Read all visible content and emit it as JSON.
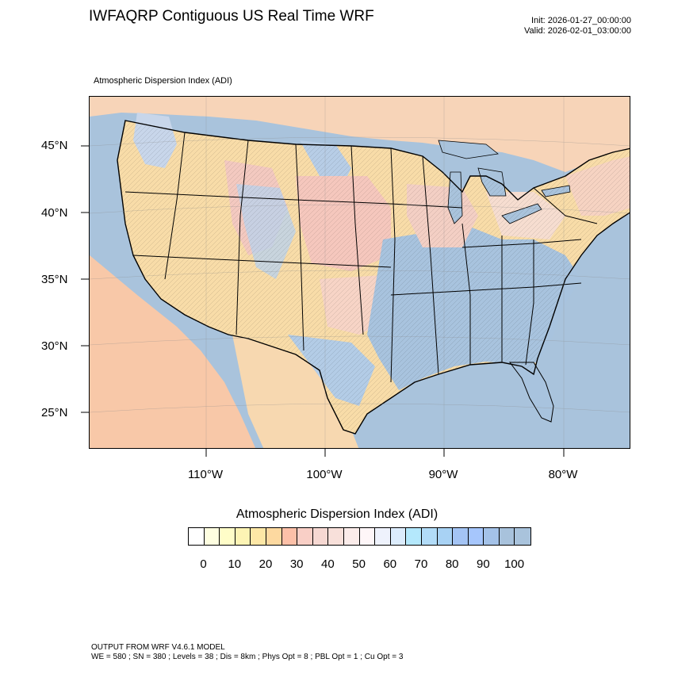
{
  "header": {
    "title": "IWFAQRP Contiguous US Real Time WRF",
    "init": "Init: 2026-01-27_00:00:00",
    "valid": "Valid: 2026-02-01_03:00:00",
    "subtitle": "Atmospheric Dispersion Index   (ADI)"
  },
  "map": {
    "lat_labels": [
      "45°N",
      "40°N",
      "35°N",
      "30°N",
      "25°N"
    ],
    "lon_labels": [
      "110°W",
      "100°W",
      "90°W",
      "80°W"
    ],
    "colors": {
      "ocean": "#a9c3dc",
      "land_low": "#f9d9a6",
      "land_mid": "#f6c8b6",
      "land_high": "#b9cfe6",
      "borders": "#000000"
    }
  },
  "colorbar": {
    "title": "Atmospheric Dispersion Index  (ADI)",
    "colors": [
      "#ffffff",
      "#fefee0",
      "#fffdc8",
      "#fdf4b4",
      "#fde7a6",
      "#fdd9a0",
      "#fcc0a8",
      "#f9cfc6",
      "#f6d8d2",
      "#f8e0da",
      "#fbecea",
      "#fef6f8",
      "#eef2fc",
      "#dcecfc",
      "#b4e8fc",
      "#b2dcf8",
      "#a8d2f4",
      "#a4c4f4",
      "#a6c6fc",
      "#a4c2e8",
      "#a8c2dc",
      "#a9c3dc"
    ],
    "tick_labels": [
      "0",
      "10",
      "20",
      "30",
      "40",
      "50",
      "60",
      "70",
      "80",
      "90",
      "100"
    ]
  },
  "footer": {
    "line1": "OUTPUT FROM WRF V4.6.1 MODEL",
    "line2": "WE = 580 ; SN = 380 ; Levels = 38 ; Dis = 8km ; Phys Opt = 8 ; PBL Opt = 1 ; Cu Opt = 3"
  }
}
